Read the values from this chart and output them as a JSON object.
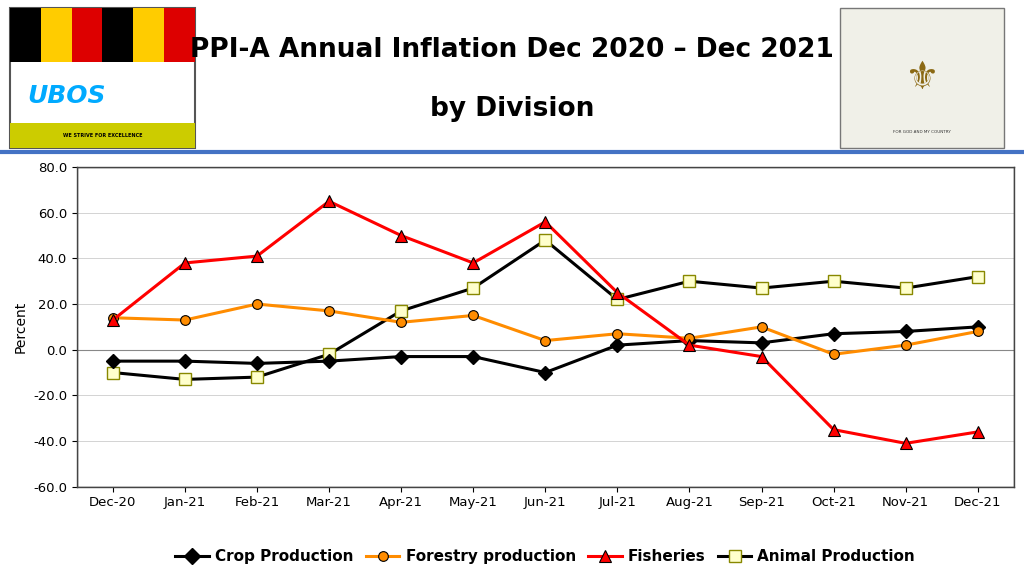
{
  "months": [
    "Dec-20",
    "Jan-21",
    "Feb-21",
    "Mar-21",
    "Apr-21",
    "May-21",
    "Jun-21",
    "Jul-21",
    "Aug-21",
    "Sep-21",
    "Oct-21",
    "Nov-21",
    "Dec-21"
  ],
  "crop_production": [
    -5,
    -5,
    -6,
    -5,
    -3,
    -3,
    -10,
    2,
    4,
    3,
    7,
    8,
    10
  ],
  "forestry_production": [
    14,
    13,
    20,
    17,
    12,
    15,
    4,
    7,
    5,
    10,
    -2,
    2,
    8
  ],
  "fisheries": [
    13,
    38,
    41,
    65,
    50,
    38,
    56,
    25,
    2,
    -3,
    -35,
    -41,
    -36
  ],
  "animal_production": [
    -10,
    -13,
    -12,
    -2,
    17,
    27,
    48,
    22,
    30,
    27,
    30,
    27,
    32
  ],
  "title_line1": "PPI-A Annual Inflation Dec 2020 – Dec 2021",
  "title_line2": "by Division",
  "ylabel": "Percent",
  "ylim": [
    -60,
    80
  ],
  "yticks": [
    -60.0,
    -40.0,
    -20.0,
    0.0,
    20.0,
    40.0,
    60.0,
    80.0
  ],
  "crop_color": "#000000",
  "forestry_color": "#FF8C00",
  "fisheries_color": "#FF0000",
  "animal_color": "#000000",
  "background_color": "#FFFFFF",
  "plot_bg_color": "#FFFFFF",
  "header_bg_color": "#FFFFFF",
  "ubos_colors": [
    "#FFFF00",
    "#000000",
    "#FF0000",
    "#000000"
  ],
  "ubos_stripe_colors": [
    "#FFFF00",
    "#000000",
    "#FF0000"
  ],
  "line_width": 2.2,
  "marker_size": 8
}
